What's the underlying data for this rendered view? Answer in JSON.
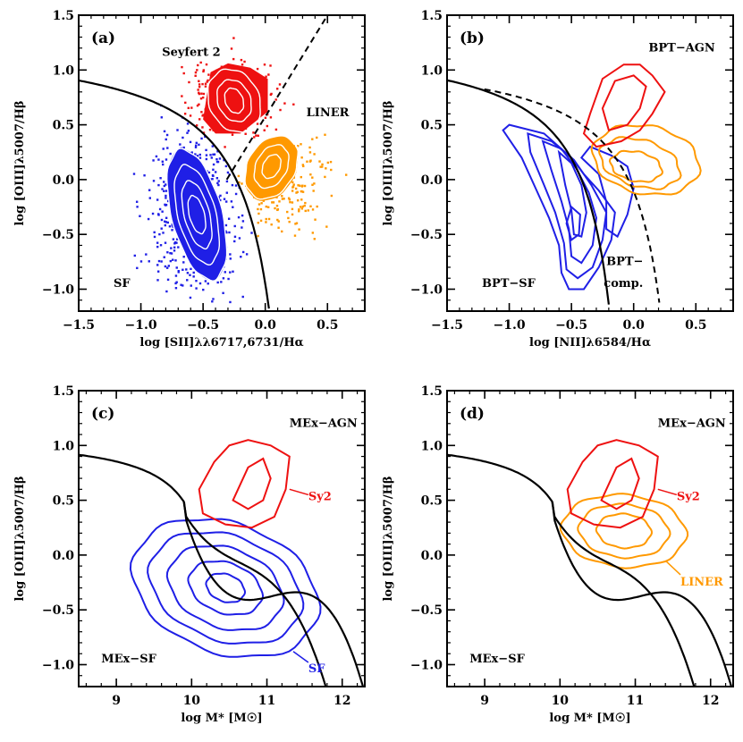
{
  "colors": {
    "sf": "#1f1fe6",
    "sy2": "#ee1111",
    "liner": "#ff9900",
    "axes": "#000000",
    "contour_white": "#ffffff"
  },
  "chart_data": [
    {
      "panel": "(a)",
      "type": "scatter",
      "xlabel": "log [SII]λλ6717,6731/Hα",
      "ylabel": "log [OIII]λ5007/Hβ",
      "xlim": [
        -1.5,
        0.8
      ],
      "ylim": [
        -1.2,
        1.5
      ],
      "xticks": [
        -1.5,
        -1.0,
        -0.5,
        0.0,
        0.5
      ],
      "xtick_labels": [
        "−1.5",
        "−1.0",
        "−0.5",
        "0.0",
        "0.5"
      ],
      "yticks": [
        -1.0,
        -0.5,
        0.0,
        0.5,
        1.0,
        1.5
      ],
      "ytick_labels": [
        "−1.0",
        "−0.5",
        "0.0",
        "0.5",
        "1.0",
        "1.5"
      ],
      "annotations": [
        "Seyfert 2",
        "LINER",
        "SF"
      ],
      "series": [
        {
          "name": "SF",
          "color": "#1f1fe6",
          "center": [
            -0.55,
            -0.35
          ]
        },
        {
          "name": "Seyfert 2",
          "color": "#ee1111",
          "center": [
            -0.3,
            0.7
          ]
        },
        {
          "name": "LINER",
          "color": "#ff9900",
          "center": [
            0.05,
            0.2
          ]
        }
      ]
    },
    {
      "panel": "(b)",
      "type": "line",
      "xlabel": "log [NII]λ6584/Hα",
      "ylabel": "log [OIII]λ5007/Hβ",
      "xlim": [
        -1.5,
        0.8
      ],
      "ylim": [
        -1.2,
        1.5
      ],
      "xticks": [
        -1.5,
        -1.0,
        -0.5,
        0.0,
        0.5
      ],
      "xtick_labels": [
        "−1.5",
        "−1.0",
        "−0.5",
        "0.0",
        "0.5"
      ],
      "yticks": [
        -1.0,
        -0.5,
        0.0,
        0.5,
        1.0,
        1.5
      ],
      "ytick_labels": [
        "−1.0",
        "−0.5",
        "0.0",
        "0.5",
        "1.0",
        "1.5"
      ],
      "annotations": [
        "BPT−AGN",
        "BPT−SF",
        "BPT−",
        "comp."
      ]
    },
    {
      "panel": "(c)",
      "type": "line",
      "xlabel": "log M* [M☉]",
      "ylabel": "log [OIII]λ5007/Hβ",
      "xlim": [
        8.5,
        12.3
      ],
      "ylim": [
        -1.2,
        1.5
      ],
      "xticks": [
        9,
        10,
        11,
        12
      ],
      "xtick_labels": [
        "9",
        "10",
        "11",
        "12"
      ],
      "yticks": [
        -1.0,
        -0.5,
        0.0,
        0.5,
        1.0,
        1.5
      ],
      "ytick_labels": [
        "−1.0",
        "−0.5",
        "0.0",
        "0.5",
        "1.0",
        "1.5"
      ],
      "annotations": [
        "MEx−AGN",
        "MEx−SF",
        "Sy2",
        "SF"
      ]
    },
    {
      "panel": "(d)",
      "type": "line",
      "xlabel": "log M* [M☉]",
      "ylabel": "log [OIII]λ5007/Hβ",
      "xlim": [
        8.5,
        12.3
      ],
      "ylim": [
        -1.2,
        1.5
      ],
      "xticks": [
        9,
        10,
        11,
        12
      ],
      "xtick_labels": [
        "9",
        "10",
        "11",
        "12"
      ],
      "yticks": [
        -1.0,
        -0.5,
        0.0,
        0.5,
        1.0,
        1.5
      ],
      "ytick_labels": [
        "−1.0",
        "−0.5",
        "0.0",
        "0.5",
        "1.0",
        "1.5"
      ],
      "annotations": [
        "MEx−AGN",
        "MEx−SF",
        "Sy2",
        "LINER"
      ]
    }
  ]
}
